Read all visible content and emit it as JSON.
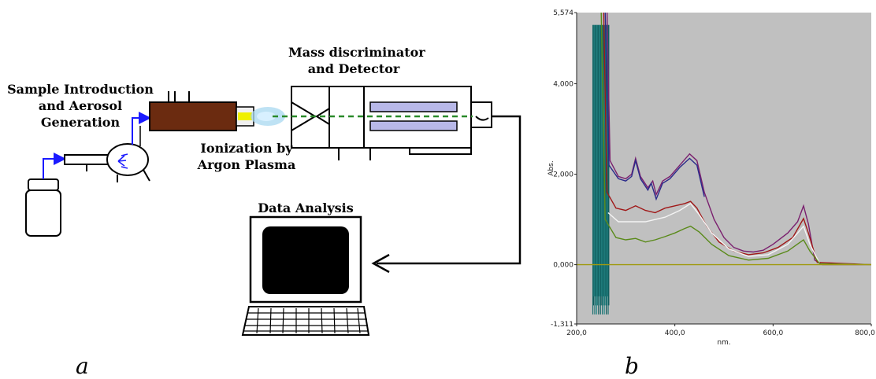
{
  "diagram": {
    "labels": {
      "sample_intro": "Sample Introduction\nand Aerosol\nGeneration",
      "mass_disc": "Mass discriminator\nand Detector",
      "ionization": "Ionization by\nArgon Plasma",
      "data_analysis": "Data Analysis"
    },
    "panel_a": "a",
    "panel_b": "b"
  },
  "colors": {
    "torch": "#6b2b10",
    "flow": "#1a1aff",
    "beam": "#2a8a2a",
    "plasma": "#a8d8f0",
    "plot_bg": "#c0c0c0"
  },
  "chart_data": {
    "type": "line",
    "xlabel": "nm.",
    "ylabel": "Abs.",
    "xlim": [
      200,
      800
    ],
    "ylim": [
      -1.311,
      5.574
    ],
    "x_ticks": [
      "200,0",
      "400,0",
      "600,0",
      "800,0"
    ],
    "y_ticks": [
      "5,574",
      "4,000",
      "2,000",
      "0,000",
      "-1,311"
    ],
    "grid": false,
    "series": [
      {
        "color": "#7a1f6e",
        "points": [
          [
            262,
            5.574
          ],
          [
            268,
            2.3
          ],
          [
            285,
            1.95
          ],
          [
            300,
            1.9
          ],
          [
            312,
            2.0
          ],
          [
            320,
            2.35
          ],
          [
            330,
            1.95
          ],
          [
            345,
            1.7
          ],
          [
            355,
            1.85
          ],
          [
            362,
            1.55
          ],
          [
            375,
            1.85
          ],
          [
            390,
            1.95
          ],
          [
            410,
            2.2
          ],
          [
            430,
            2.45
          ],
          [
            445,
            2.3
          ],
          [
            460,
            1.6
          ],
          [
            480,
            1.0
          ],
          [
            500,
            0.6
          ],
          [
            520,
            0.38
          ],
          [
            540,
            0.3
          ],
          [
            560,
            0.28
          ],
          [
            580,
            0.32
          ],
          [
            600,
            0.45
          ],
          [
            630,
            0.7
          ],
          [
            650,
            0.95
          ],
          [
            662,
            1.3
          ],
          [
            672,
            0.9
          ],
          [
            685,
            0.1
          ],
          [
            700,
            0.0
          ],
          [
            800,
            0.0
          ]
        ]
      },
      {
        "color": "#2a2a8a",
        "points": [
          [
            258,
            5.574
          ],
          [
            266,
            2.2
          ],
          [
            285,
            1.9
          ],
          [
            300,
            1.85
          ],
          [
            312,
            1.95
          ],
          [
            320,
            2.3
          ],
          [
            330,
            1.9
          ],
          [
            345,
            1.65
          ],
          [
            352,
            1.8
          ],
          [
            362,
            1.45
          ],
          [
            375,
            1.8
          ],
          [
            390,
            1.9
          ],
          [
            410,
            2.15
          ],
          [
            430,
            2.35
          ],
          [
            445,
            2.2
          ],
          [
            460,
            1.5
          ]
        ]
      },
      {
        "color": "#a01818",
        "points": [
          [
            255,
            5.574
          ],
          [
            262,
            1.6
          ],
          [
            280,
            1.25
          ],
          [
            300,
            1.2
          ],
          [
            320,
            1.3
          ],
          [
            340,
            1.2
          ],
          [
            360,
            1.15
          ],
          [
            380,
            1.25
          ],
          [
            400,
            1.3
          ],
          [
            420,
            1.35
          ],
          [
            432,
            1.4
          ],
          [
            445,
            1.25
          ],
          [
            465,
            0.85
          ],
          [
            490,
            0.5
          ],
          [
            520,
            0.3
          ],
          [
            550,
            0.22
          ],
          [
            580,
            0.26
          ],
          [
            610,
            0.38
          ],
          [
            640,
            0.6
          ],
          [
            662,
            1.02
          ],
          [
            672,
            0.7
          ],
          [
            690,
            0.05
          ],
          [
            800,
            0.0
          ]
        ]
      },
      {
        "color": "#f4f4f4",
        "points": [
          [
            264,
            1.15
          ],
          [
            285,
            0.95
          ],
          [
            310,
            0.95
          ],
          [
            340,
            0.95
          ],
          [
            380,
            1.05
          ],
          [
            410,
            1.2
          ],
          [
            432,
            1.35
          ],
          [
            450,
            1.1
          ],
          [
            475,
            0.7
          ],
          [
            510,
            0.35
          ],
          [
            550,
            0.18
          ],
          [
            590,
            0.22
          ],
          [
            630,
            0.45
          ],
          [
            662,
            0.85
          ],
          [
            675,
            0.45
          ],
          [
            695,
            0.02
          ],
          [
            800,
            0.0
          ]
        ]
      },
      {
        "color": "#5a8a1a",
        "points": [
          [
            250,
            5.574
          ],
          [
            258,
            1.0
          ],
          [
            280,
            0.6
          ],
          [
            300,
            0.55
          ],
          [
            320,
            0.58
          ],
          [
            340,
            0.5
          ],
          [
            360,
            0.55
          ],
          [
            380,
            0.62
          ],
          [
            400,
            0.7
          ],
          [
            420,
            0.8
          ],
          [
            432,
            0.85
          ],
          [
            450,
            0.72
          ],
          [
            475,
            0.45
          ],
          [
            510,
            0.2
          ],
          [
            550,
            0.1
          ],
          [
            590,
            0.14
          ],
          [
            630,
            0.3
          ],
          [
            662,
            0.55
          ],
          [
            675,
            0.3
          ],
          [
            695,
            0.02
          ],
          [
            800,
            0.0
          ]
        ]
      },
      {
        "color": "#a09a10",
        "points": [
          [
            200,
            0.0
          ],
          [
            240,
            0.0
          ],
          [
            260,
            0.0
          ],
          [
            300,
            0.0
          ],
          [
            500,
            0.0
          ],
          [
            800,
            0.0
          ]
        ]
      }
    ]
  }
}
